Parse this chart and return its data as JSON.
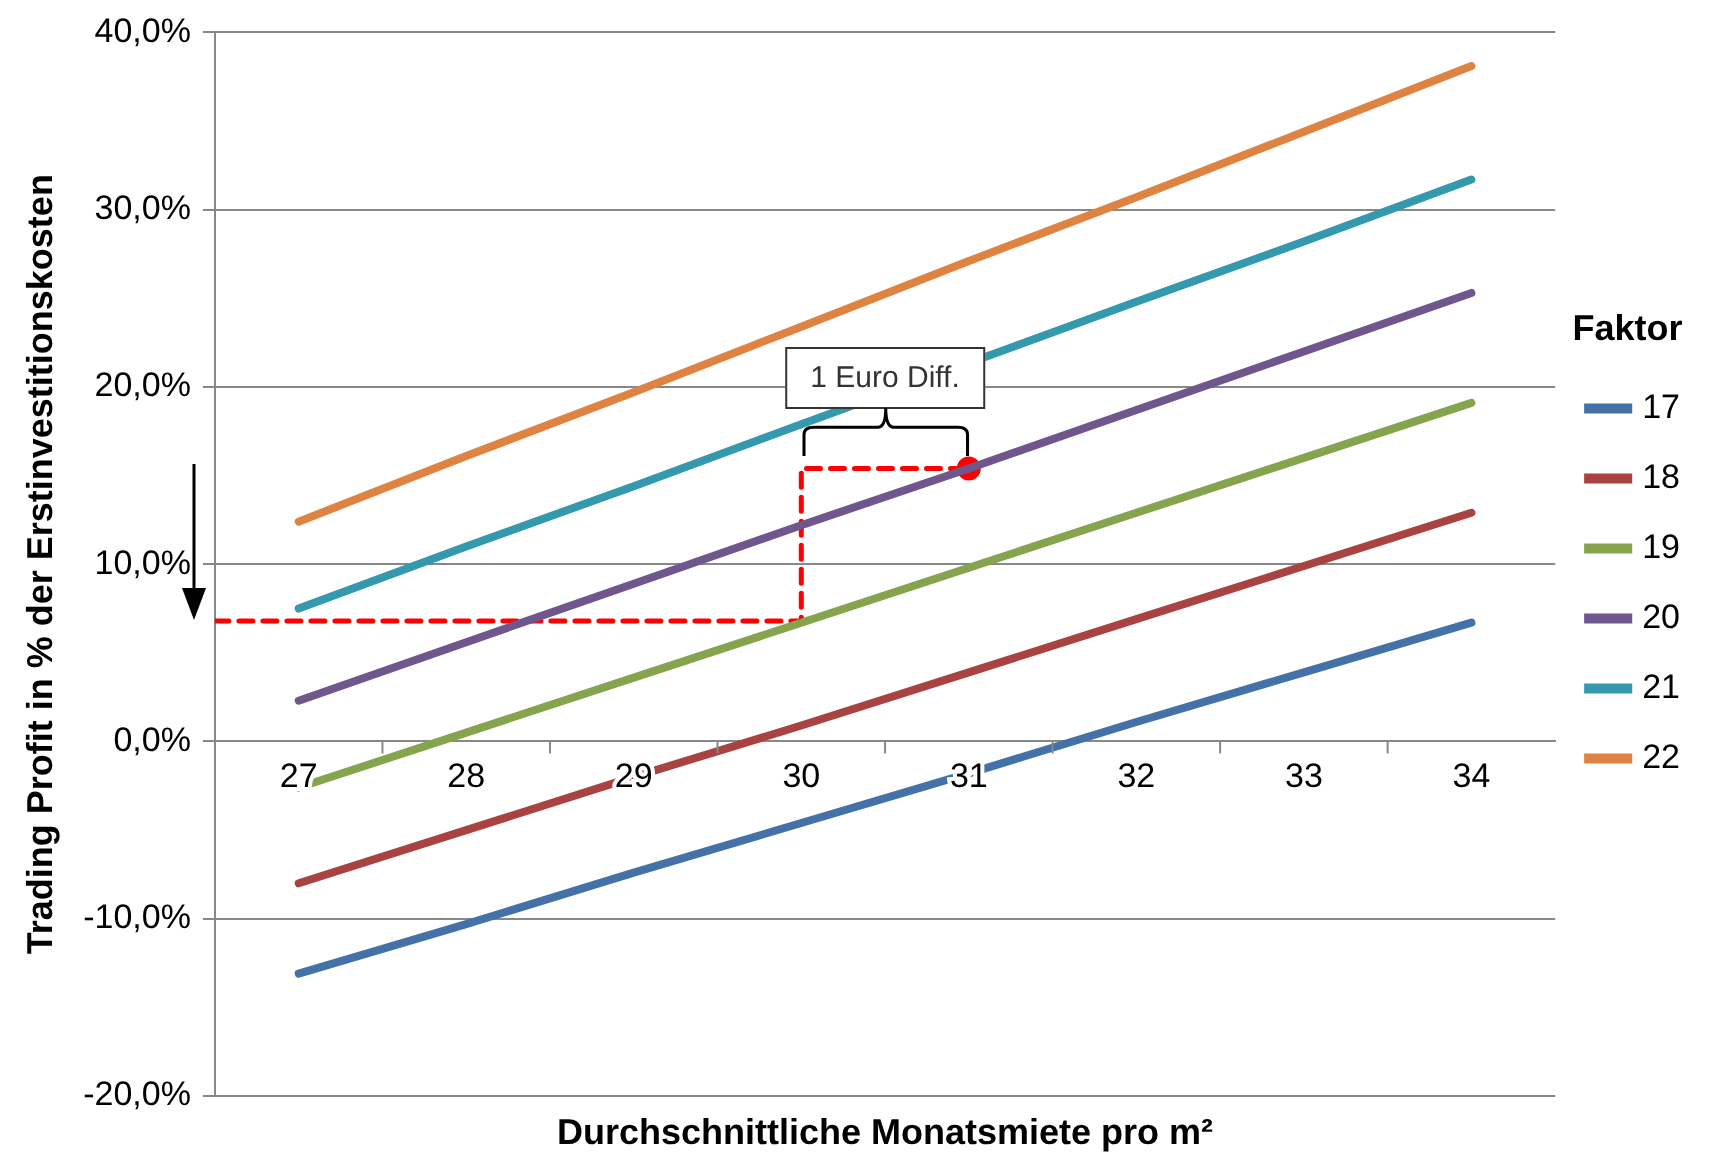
{
  "chart_data": {
    "type": "line",
    "xlabel": "Durchschnittliche Monatsmiete pro m²",
    "ylabel": "Trading Profit in % der Erstinvestitionskosten",
    "legend_title": "Faktor",
    "legend": "right",
    "grid": "y",
    "marker": "none",
    "line_style": "solid",
    "x": [
      27,
      28,
      29,
      30,
      31,
      32,
      33,
      34
    ],
    "xlim": [
      26.5,
      34.5
    ],
    "xticks": [
      27,
      28,
      29,
      30,
      31,
      32,
      33,
      34
    ],
    "ylim": [
      -20,
      40
    ],
    "yticks": [
      {
        "value": -20,
        "label": "-20,0%"
      },
      {
        "value": -10,
        "label": "-10,0%"
      },
      {
        "value": 0,
        "label": "0,0%"
      },
      {
        "value": 10,
        "label": "10,0%"
      },
      {
        "value": 20,
        "label": "20,0%"
      },
      {
        "value": 30,
        "label": "30,0%"
      },
      {
        "value": 40,
        "label": "40,0%"
      }
    ],
    "series": [
      {
        "name": "17",
        "color": "#4472a8",
        "values": [
          -13.1,
          -10.3,
          -7.4,
          -4.6,
          -1.8,
          1.1,
          3.9,
          6.7
        ]
      },
      {
        "name": "18",
        "color": "#a94341",
        "values": [
          -8.0,
          -5.0,
          -2.0,
          0.9,
          3.9,
          6.9,
          9.9,
          12.9
        ]
      },
      {
        "name": "19",
        "color": "#86a34d",
        "values": [
          -2.6,
          0.5,
          3.6,
          6.7,
          9.8,
          12.9,
          16.0,
          19.1
        ]
      },
      {
        "name": "20",
        "color": "#6f578e",
        "values": [
          2.3,
          5.6,
          8.9,
          12.2,
          15.4,
          18.7,
          22.0,
          25.3
        ]
      },
      {
        "name": "21",
        "color": "#3499ad",
        "values": [
          7.5,
          11.0,
          14.4,
          17.9,
          null,
          24.8,
          28.2,
          31.7
        ]
      },
      {
        "name": "22",
        "color": "#df8342",
        "values": [
          12.4,
          16.1,
          19.7,
          23.4,
          27.1,
          30.7,
          34.4,
          38.1
        ]
      },
      {
        "type": "line",
        "color": "#ff0000",
        "line_style": "dashed",
        "x": [
          26.5,
          30,
          30,
          31
        ],
        "values": [
          6.8,
          6.8,
          15.4,
          15.4
        ]
      },
      {
        "type": "scatter",
        "color": "#ff0000",
        "marker": "circle",
        "x": [
          31
        ],
        "values": [
          15.4
        ]
      }
    ],
    "annotations": [
      "1 Euro Diff."
    ]
  }
}
